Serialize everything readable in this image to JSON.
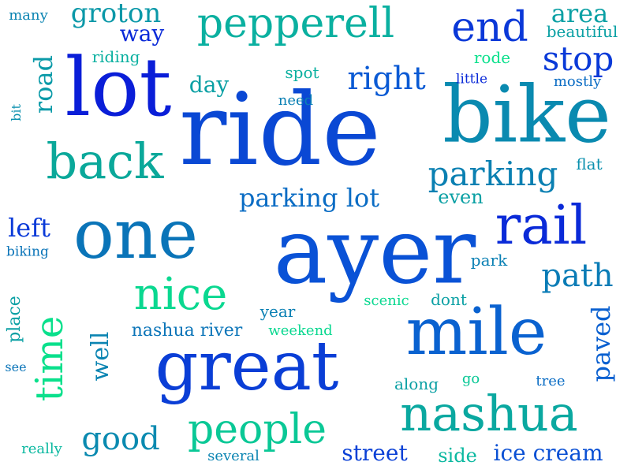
{
  "words": [
    {
      "text": "ride",
      "color": "#0a48d4"
    },
    {
      "text": "ayer",
      "color": "#0a52d6"
    },
    {
      "text": "lot",
      "color": "#0a1ed8"
    },
    {
      "text": "bike",
      "color": "#0a8ab0"
    },
    {
      "text": "one",
      "color": "#0a74b8"
    },
    {
      "text": "great",
      "color": "#0a3ed6"
    },
    {
      "text": "mile",
      "color": "#0a62d0"
    },
    {
      "text": "nashua",
      "color": "#0aa8a0"
    },
    {
      "text": "rail",
      "color": "#0a2ad8"
    },
    {
      "text": "back",
      "color": "#0aa89a"
    },
    {
      "text": "pepperell",
      "color": "#0ab0a0"
    },
    {
      "text": "nice",
      "color": "#0ad890"
    },
    {
      "text": "time",
      "color": "#0ae08c"
    },
    {
      "text": "people",
      "color": "#0ac896"
    },
    {
      "text": "end",
      "color": "#0a38d8"
    },
    {
      "text": "parking",
      "color": "#0a80b2"
    },
    {
      "text": "stop",
      "color": "#0a3ad8"
    },
    {
      "text": "path",
      "color": "#0a7cb6"
    },
    {
      "text": "good",
      "color": "#0a8ab0"
    },
    {
      "text": "right",
      "color": "#0a5ad4"
    },
    {
      "text": "parking lot",
      "color": "#0a6cc4"
    },
    {
      "text": "groton",
      "color": "#0a98a8"
    },
    {
      "text": "road",
      "color": "#0a9aa8"
    },
    {
      "text": "area",
      "color": "#0aa0a4"
    },
    {
      "text": "paved",
      "color": "#0a60d0"
    },
    {
      "text": "left",
      "color": "#0a3ad8"
    },
    {
      "text": "street",
      "color": "#0a40d6"
    },
    {
      "text": "ice cream",
      "color": "#0a50d4"
    },
    {
      "text": "well",
      "color": "#0a84b2"
    },
    {
      "text": "way",
      "color": "#0a2ad8"
    },
    {
      "text": "day",
      "color": "#0aa0a4"
    },
    {
      "text": "even",
      "color": "#0aa0a4"
    },
    {
      "text": "nashua river",
      "color": "#0a74b8"
    },
    {
      "text": "place",
      "color": "#0aa0a4"
    },
    {
      "text": "side",
      "color": "#0ab8a0"
    },
    {
      "text": "beautiful",
      "color": "#0aa0a4"
    },
    {
      "text": "rode",
      "color": "#0ae08c"
    },
    {
      "text": "flat",
      "color": "#0a90ae"
    },
    {
      "text": "park",
      "color": "#0a80b4"
    },
    {
      "text": "year",
      "color": "#0a80b4"
    },
    {
      "text": "scenic",
      "color": "#0ad890"
    },
    {
      "text": "dont",
      "color": "#0aa0a4"
    },
    {
      "text": "weekend",
      "color": "#0ad890"
    },
    {
      "text": "riding",
      "color": "#0ab0a0"
    },
    {
      "text": "spot",
      "color": "#0ab0a0"
    },
    {
      "text": "need",
      "color": "#0a80b4"
    },
    {
      "text": "little",
      "color": "#0a2ad8"
    },
    {
      "text": "mostly",
      "color": "#0a6cc4"
    },
    {
      "text": "many",
      "color": "#0a84b2"
    },
    {
      "text": "bit",
      "color": "#0a90ae"
    },
    {
      "text": "biking",
      "color": "#0a74b8"
    },
    {
      "text": "see",
      "color": "#0a74b8"
    },
    {
      "text": "really",
      "color": "#0ab8a0"
    },
    {
      "text": "several",
      "color": "#0a84b2"
    },
    {
      "text": "along",
      "color": "#0aa0a4"
    },
    {
      "text": "go",
      "color": "#0ac896"
    },
    {
      "text": "tree",
      "color": "#0a6cc4"
    }
  ]
}
